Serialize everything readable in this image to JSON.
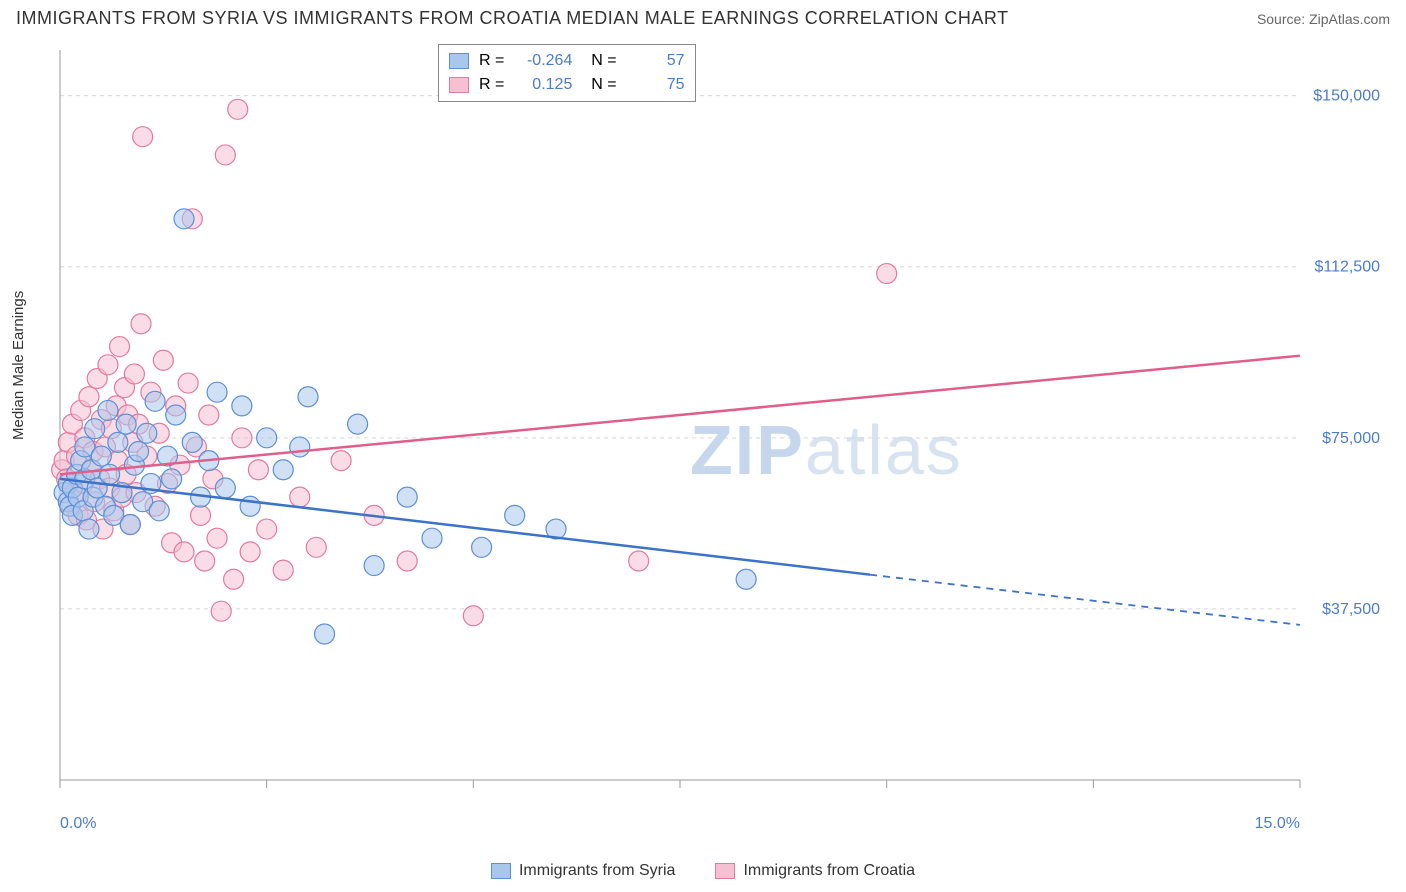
{
  "title": "IMMIGRANTS FROM SYRIA VS IMMIGRANTS FROM CROATIA MEDIAN MALE EARNINGS CORRELATION CHART",
  "source": "Source: ZipAtlas.com",
  "y_axis_label": "Median Male Earnings",
  "watermark_bold": "ZIP",
  "watermark_thin": "atlas",
  "colors": {
    "blue_stroke": "#5b8fd6",
    "blue_fill": "#a9c7ec",
    "pink_stroke": "#e27a9e",
    "pink_fill": "#f6c0d2",
    "grid": "#d7d7d7",
    "axis": "#999999",
    "tick_text": "#4a7dc9",
    "line_blue": "#3b73c8",
    "line_pink": "#e05e8a"
  },
  "plot": {
    "x_min": 0.0,
    "x_max": 15.0,
    "y_min": 0,
    "y_max": 160000,
    "y_gridlines": [
      37500,
      75000,
      112500,
      150000
    ],
    "y_tick_labels": [
      "$37,500",
      "$75,000",
      "$112,500",
      "$150,000"
    ],
    "x_ticks": [
      0,
      2.5,
      5,
      7.5,
      10,
      12.5,
      15
    ],
    "x_tick_labels_shown": {
      "0": "0.0%",
      "15": "15.0%"
    },
    "marker_radius": 10,
    "marker_opacity": 0.55,
    "line_width": 2.5
  },
  "stats": [
    {
      "series": "blue",
      "R": "-0.264",
      "N": "57"
    },
    {
      "series": "pink",
      "R": "0.125",
      "N": "75"
    }
  ],
  "legend": [
    {
      "series": "blue",
      "label": "Immigrants from Syria"
    },
    {
      "series": "pink",
      "label": "Immigrants from Croatia"
    }
  ],
  "trend_lines": {
    "blue": {
      "x1": 0.0,
      "y1": 66000,
      "x2_solid": 9.8,
      "y2_solid": 45000,
      "x2_dash": 15.0,
      "y2_dash": 34000
    },
    "pink": {
      "x1": 0.0,
      "y1": 67000,
      "x2": 15.0,
      "y2": 93000
    }
  },
  "series": {
    "blue": [
      [
        0.05,
        63000
      ],
      [
        0.1,
        61000
      ],
      [
        0.1,
        65000
      ],
      [
        0.12,
        60000
      ],
      [
        0.15,
        64000
      ],
      [
        0.15,
        58000
      ],
      [
        0.2,
        67000
      ],
      [
        0.22,
        62000
      ],
      [
        0.25,
        70000
      ],
      [
        0.28,
        59000
      ],
      [
        0.3,
        66000
      ],
      [
        0.3,
        73000
      ],
      [
        0.35,
        55000
      ],
      [
        0.38,
        68000
      ],
      [
        0.4,
        62000
      ],
      [
        0.42,
        77000
      ],
      [
        0.45,
        64000
      ],
      [
        0.5,
        71000
      ],
      [
        0.55,
        60000
      ],
      [
        0.58,
        81000
      ],
      [
        0.6,
        67000
      ],
      [
        0.65,
        58000
      ],
      [
        0.7,
        74000
      ],
      [
        0.75,
        63000
      ],
      [
        0.8,
        78000
      ],
      [
        0.85,
        56000
      ],
      [
        0.9,
        69000
      ],
      [
        0.95,
        72000
      ],
      [
        1.0,
        61000
      ],
      [
        1.05,
        76000
      ],
      [
        1.1,
        65000
      ],
      [
        1.15,
        83000
      ],
      [
        1.2,
        59000
      ],
      [
        1.3,
        71000
      ],
      [
        1.35,
        66000
      ],
      [
        1.4,
        80000
      ],
      [
        1.5,
        123000
      ],
      [
        1.6,
        74000
      ],
      [
        1.7,
        62000
      ],
      [
        1.8,
        70000
      ],
      [
        1.9,
        85000
      ],
      [
        2.0,
        64000
      ],
      [
        2.2,
        82000
      ],
      [
        2.3,
        60000
      ],
      [
        2.5,
        75000
      ],
      [
        2.7,
        68000
      ],
      [
        2.9,
        73000
      ],
      [
        3.0,
        84000
      ],
      [
        3.2,
        32000
      ],
      [
        3.6,
        78000
      ],
      [
        3.8,
        47000
      ],
      [
        4.2,
        62000
      ],
      [
        4.5,
        53000
      ],
      [
        5.1,
        51000
      ],
      [
        5.5,
        58000
      ],
      [
        6.0,
        55000
      ],
      [
        8.3,
        44000
      ]
    ],
    "pink": [
      [
        0.02,
        68000
      ],
      [
        0.05,
        70000
      ],
      [
        0.08,
        66000
      ],
      [
        0.1,
        74000
      ],
      [
        0.12,
        60000
      ],
      [
        0.15,
        78000
      ],
      [
        0.18,
        63000
      ],
      [
        0.2,
        71000
      ],
      [
        0.22,
        58000
      ],
      [
        0.25,
        81000
      ],
      [
        0.28,
        65000
      ],
      [
        0.3,
        75000
      ],
      [
        0.32,
        57000
      ],
      [
        0.35,
        84000
      ],
      [
        0.38,
        68000
      ],
      [
        0.4,
        72000
      ],
      [
        0.42,
        61000
      ],
      [
        0.45,
        88000
      ],
      [
        0.48,
        66000
      ],
      [
        0.5,
        79000
      ],
      [
        0.52,
        55000
      ],
      [
        0.55,
        73000
      ],
      [
        0.58,
        91000
      ],
      [
        0.6,
        64000
      ],
      [
        0.62,
        77000
      ],
      [
        0.65,
        59000
      ],
      [
        0.68,
        82000
      ],
      [
        0.7,
        70000
      ],
      [
        0.72,
        95000
      ],
      [
        0.75,
        62000
      ],
      [
        0.78,
        86000
      ],
      [
        0.8,
        67000
      ],
      [
        0.82,
        80000
      ],
      [
        0.85,
        56000
      ],
      [
        0.88,
        74000
      ],
      [
        0.9,
        89000
      ],
      [
        0.92,
        63000
      ],
      [
        0.95,
        78000
      ],
      [
        0.98,
        100000
      ],
      [
        1.0,
        141000
      ],
      [
        1.05,
        71000
      ],
      [
        1.1,
        85000
      ],
      [
        1.15,
        60000
      ],
      [
        1.2,
        76000
      ],
      [
        1.25,
        92000
      ],
      [
        1.3,
        65000
      ],
      [
        1.35,
        52000
      ],
      [
        1.4,
        82000
      ],
      [
        1.45,
        69000
      ],
      [
        1.5,
        50000
      ],
      [
        1.55,
        87000
      ],
      [
        1.6,
        123000
      ],
      [
        1.65,
        73000
      ],
      [
        1.7,
        58000
      ],
      [
        1.75,
        48000
      ],
      [
        1.8,
        80000
      ],
      [
        1.85,
        66000
      ],
      [
        1.9,
        53000
      ],
      [
        1.95,
        37000
      ],
      [
        2.0,
        137000
      ],
      [
        2.1,
        44000
      ],
      [
        2.15,
        147000
      ],
      [
        2.2,
        75000
      ],
      [
        2.3,
        50000
      ],
      [
        2.4,
        68000
      ],
      [
        2.5,
        55000
      ],
      [
        2.7,
        46000
      ],
      [
        2.9,
        62000
      ],
      [
        3.1,
        51000
      ],
      [
        3.4,
        70000
      ],
      [
        3.8,
        58000
      ],
      [
        4.2,
        48000
      ],
      [
        5.0,
        36000
      ],
      [
        7.0,
        48000
      ],
      [
        10.0,
        111000
      ]
    ]
  }
}
